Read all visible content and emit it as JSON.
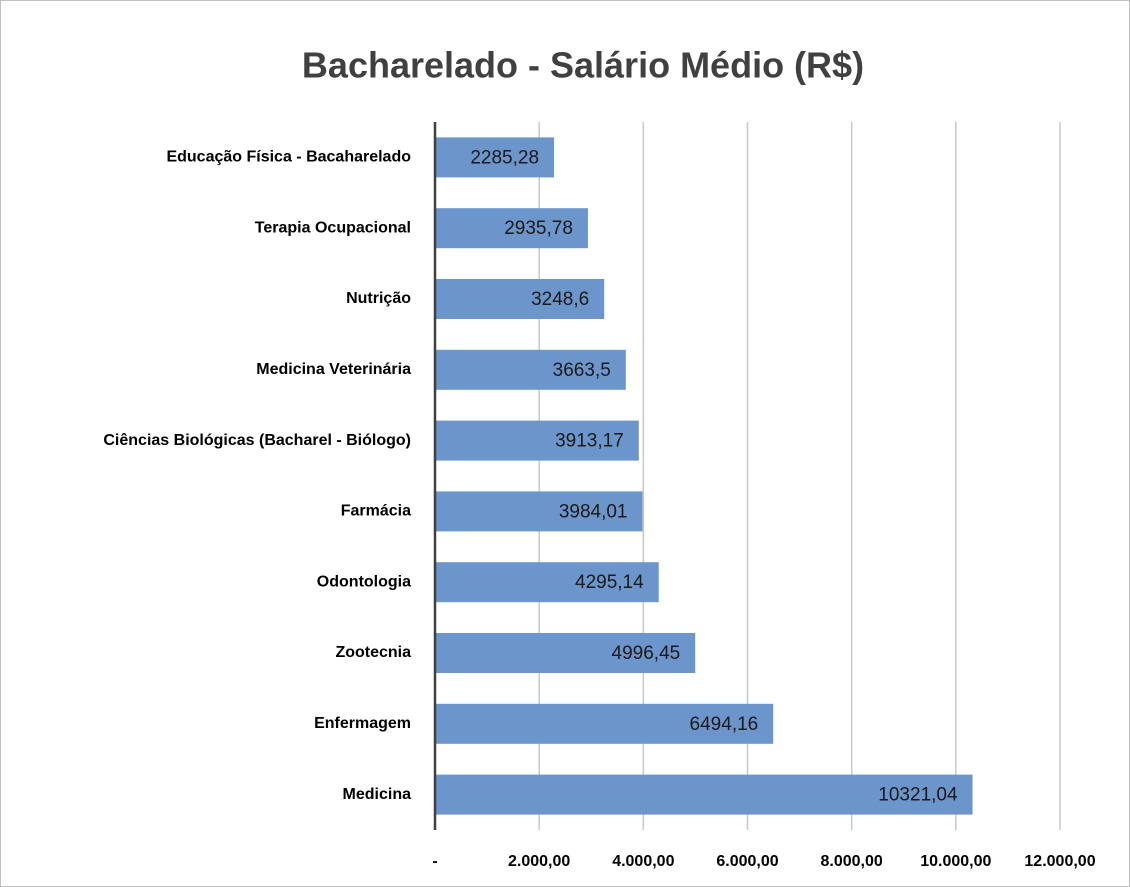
{
  "chart_data": {
    "type": "bar",
    "orientation": "horizontal",
    "title": "Bacharelado - Salário Médio (R$)",
    "categories": [
      "Educação Física - Bacaharelado",
      "Terapia Ocupacional",
      "Nutrição",
      "Medicina Veterinária",
      "Ciências Biológicas (Bacharel - Biólogo)",
      "Farmácia",
      "Odontologia",
      "Zootecnia",
      "Enfermagem",
      "Medicina"
    ],
    "values": [
      2285.28,
      2935.78,
      3248.6,
      3663.5,
      3913.17,
      3984.01,
      4295.14,
      4996.45,
      6494.16,
      10321.04
    ],
    "value_labels": [
      "2285,28",
      "2935,78",
      "3248,6",
      "3663,5",
      "3913,17",
      "3984,01",
      "4295,14",
      "4996,45",
      "6494,16",
      "10321,04"
    ],
    "color": "#6b95cb",
    "xlim": [
      0,
      12000
    ],
    "xticks": [
      {
        "value": 0,
        "label": "-"
      },
      {
        "value": 2000,
        "label": "2.000,00"
      },
      {
        "value": 4000,
        "label": "4.000,00"
      },
      {
        "value": 6000,
        "label": "6.000,00"
      },
      {
        "value": 8000,
        "label": "8.000,00"
      },
      {
        "value": 10000,
        "label": "10.000,00"
      },
      {
        "value": 12000,
        "label": "12.000,00"
      }
    ],
    "grid": true
  }
}
